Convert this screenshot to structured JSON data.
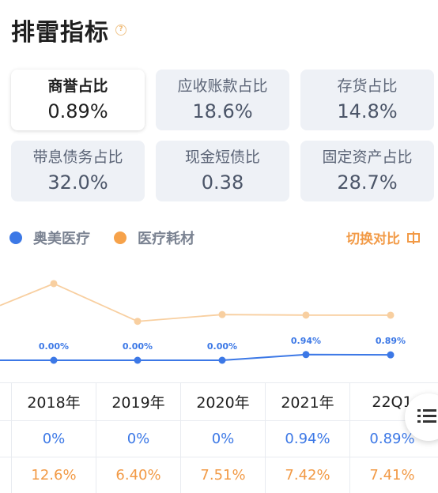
{
  "header": {
    "title": "排雷指标",
    "help_icon": "question-icon"
  },
  "metrics": [
    {
      "label": "商誉占比",
      "value": "0.89%",
      "active": true
    },
    {
      "label": "应收账款占比",
      "value": "18.6%"
    },
    {
      "label": "存货占比",
      "value": "14.8%"
    },
    {
      "label": "带息债务占比",
      "value": "32.0%"
    },
    {
      "label": "现金短债比",
      "value": "0.38"
    },
    {
      "label": "固定资产占比",
      "value": "28.7%"
    }
  ],
  "legend": [
    {
      "name": "奥美医疗",
      "color": "#3c78e6"
    },
    {
      "name": "医疗耗材",
      "color": "#f6a24a"
    }
  ],
  "switch_label": "切换对比",
  "chart_data": {
    "type": "line",
    "categories": [
      "2018年",
      "2019年",
      "2020年",
      "2021年",
      "22Q1"
    ],
    "series": [
      {
        "name": "奥美医疗",
        "values": [
          0,
          0,
          0,
          0.94,
          0.89
        ],
        "labels": [
          "0.00%",
          "0.00%",
          "0.00%",
          "0.94%",
          "0.89%"
        ],
        "color": "#3c78e6"
      },
      {
        "name": "医疗耗材",
        "values": [
          12.6,
          6.4,
          7.51,
          7.42,
          7.41
        ],
        "color": "#f8cfa0"
      }
    ]
  },
  "table": {
    "headers": [
      "2018年",
      "2019年",
      "2020年",
      "2021年",
      "22Q1"
    ],
    "rows": [
      [
        "0%",
        "0%",
        "0%",
        "0.94%",
        "0.89%"
      ],
      [
        "12.6%",
        "6.40%",
        "7.51%",
        "7.42%",
        "7.41%"
      ]
    ]
  },
  "float_button_icon": "list-menu-icon"
}
